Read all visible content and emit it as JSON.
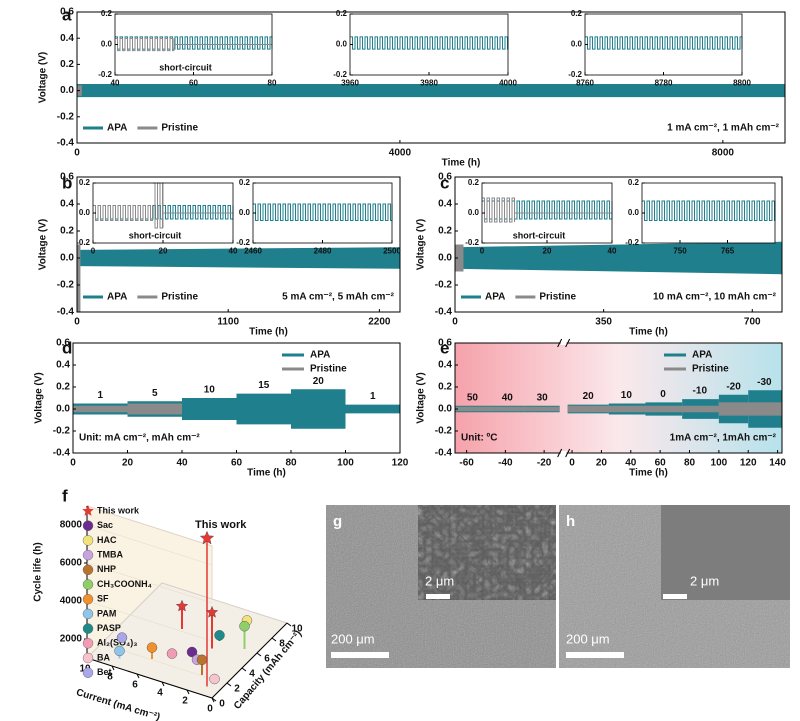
{
  "chart_data": [
    {
      "type": "band",
      "label": "a",
      "xlabel": "Time (h)",
      "ylabel": "Voltage (V)",
      "xlim": [
        0,
        8770
      ],
      "ylim": [
        -0.4,
        0.6
      ],
      "xticks": [
        0,
        4000,
        8000
      ],
      "yticks": [
        -0.4,
        -0.2,
        {
          "value": 0,
          "label": "0.0"
        },
        0.2,
        0.4,
        0.6
      ],
      "legend": "lower left",
      "notes": [
        {
          "text": "1 mA cm⁻², 1 mAh cm⁻²",
          "corner": "lower right"
        }
      ],
      "series": [
        {
          "name": "APA",
          "color": "#1f7f8c",
          "x": [
            0,
            8770
          ],
          "values": [
            0.05,
            0.05
          ],
          "lower": [
            -0.05,
            -0.05
          ]
        },
        {
          "name": "Pristine",
          "color": "#8a8a8a",
          "x": [
            0,
            60
          ],
          "values": [
            0.04,
            0.04
          ],
          "lower": [
            -0.04,
            -0.04
          ]
        }
      ],
      "insets": [
        {
          "xlim": [
            40,
            80
          ],
          "ylim": [
            -0.2,
            0.2
          ],
          "xticks": [
            40,
            60,
            80
          ],
          "yticks": [
            -0.2,
            {
              "value": 0,
              "label": "0.0"
            },
            0.2
          ],
          "note": "short-circuit",
          "series": [
            {
              "x": [
                40,
                80
              ],
              "values": [
                0.05,
                0.05
              ],
              "lower": [
                -0.03,
                -0.03
              ]
            },
            {
              "x": [
                40,
                55,
                55,
                80
              ],
              "values": [
                0.04,
                0.04,
                0,
                0
              ],
              "lower": [
                -0.04,
                -0.04,
                0,
                0
              ]
            }
          ]
        },
        {
          "xlim": [
            3960,
            4000
          ],
          "ylim": [
            -0.2,
            0.2
          ],
          "xticks": [
            3960,
            3980,
            4000
          ],
          "yticks": [
            -0.2,
            {
              "value": 0,
              "label": "0.0"
            },
            0.2
          ],
          "series": [
            {
              "x": [
                3960,
                4000
              ],
              "values": [
                0.05,
                0.05
              ],
              "lower": [
                -0.03,
                -0.03
              ]
            }
          ]
        },
        {
          "xlim": [
            8760,
            8800
          ],
          "ylim": [
            -0.2,
            0.2
          ],
          "xticks": [
            8760,
            8780,
            8800
          ],
          "yticks": [
            -0.2,
            {
              "value": 0,
              "label": "0.0"
            },
            0.2
          ],
          "series": [
            {
              "x": [
                8760,
                8800
              ],
              "values": [
                0.05,
                0.05
              ],
              "lower": [
                -0.03,
                -0.03
              ]
            }
          ]
        }
      ]
    },
    {
      "type": "band",
      "label": "b",
      "xlabel": "Time (h)",
      "ylabel": "Voltage (V)",
      "xlim": [
        0,
        2350
      ],
      "ylim": [
        -0.4,
        0.6
      ],
      "xticks": [
        0,
        1100,
        2200
      ],
      "yticks": [
        -0.4,
        -0.2,
        {
          "value": 0,
          "label": "0.0"
        },
        0.2,
        0.4,
        0.6
      ],
      "legend": "lower left",
      "notes": [
        {
          "text": "5 mA cm⁻², 5 mAh cm⁻²",
          "corner": "lower right"
        }
      ],
      "series": [
        {
          "name": "APA",
          "color": "#1f7f8c",
          "x": [
            0,
            2350
          ],
          "values": [
            0.06,
            0.08
          ],
          "lower": [
            -0.06,
            -0.08
          ]
        },
        {
          "name": "Pristine",
          "color": "#8a8a8a",
          "x": [
            0,
            25
          ],
          "values": [
            0.1,
            0.1
          ],
          "lower": [
            -0.4,
            -0.4
          ]
        }
      ],
      "insets": [
        {
          "xlim": [
            0,
            40
          ],
          "ylim": [
            -0.2,
            0.2
          ],
          "xticks": [
            0,
            20,
            40
          ],
          "yticks": [
            -0.2,
            {
              "value": 0,
              "label": "0.0"
            },
            0.2
          ],
          "note": "short-circuit",
          "series": [
            {
              "x": [
                0,
                40
              ],
              "values": [
                0.05,
                0.05
              ],
              "lower": [
                -0.04,
                -0.04
              ]
            },
            {
              "x": [
                0,
                17,
                17,
                20,
                20,
                40
              ],
              "values": [
                0.05,
                0.05,
                0.2,
                0.2,
                0,
                0
              ],
              "lower": [
                -0.05,
                -0.05,
                -0.1,
                -0.1,
                0,
                0
              ]
            }
          ]
        },
        {
          "xlim": [
            2460,
            2500
          ],
          "ylim": [
            -0.2,
            0.2
          ],
          "xticks": [
            2460,
            2480,
            2500
          ],
          "yticks": [
            -0.2,
            {
              "value": 0,
              "label": "0.0"
            },
            0.2
          ],
          "series": [
            {
              "x": [
                2460,
                2500
              ],
              "values": [
                0.06,
                0.06
              ],
              "lower": [
                -0.05,
                -0.05
              ]
            }
          ]
        }
      ]
    },
    {
      "type": "band",
      "label": "c",
      "xlabel": "Time (h)",
      "ylabel": "Voltage (V)",
      "xlim": [
        0,
        770
      ],
      "ylim": [
        -0.4,
        0.6
      ],
      "xticks": [
        0,
        350,
        700
      ],
      "yticks": [
        -0.4,
        -0.2,
        {
          "value": 0,
          "label": "0.0"
        },
        0.2,
        0.4,
        0.6
      ],
      "legend": "lower left",
      "notes": [
        {
          "text": "10 mA cm⁻², 10 mAh cm⁻²",
          "corner": "lower right"
        }
      ],
      "series": [
        {
          "name": "APA",
          "color": "#1f7f8c",
          "x": [
            0,
            770
          ],
          "values": [
            0.08,
            0.12
          ],
          "lower": [
            -0.08,
            -0.12
          ]
        },
        {
          "name": "Pristine",
          "color": "#8a8a8a",
          "x": [
            0,
            20
          ],
          "values": [
            0.1,
            0.1
          ],
          "lower": [
            -0.1,
            -0.1
          ]
        }
      ],
      "insets": [
        {
          "xlim": [
            0,
            40
          ],
          "ylim": [
            -0.2,
            0.2
          ],
          "xticks": [
            0,
            20,
            40
          ],
          "yticks": [
            -0.2,
            {
              "value": 0,
              "label": "0.0"
            },
            0.2
          ],
          "note": "short-circuit",
          "series": [
            {
              "x": [
                0,
                40
              ],
              "values": [
                0.08,
                0.08
              ],
              "lower": [
                -0.04,
                -0.04
              ]
            },
            {
              "x": [
                0,
                10,
                10,
                40
              ],
              "values": [
                0.1,
                0.1,
                0,
                0
              ],
              "lower": [
                -0.06,
                -0.06,
                0,
                0
              ]
            }
          ]
        },
        {
          "xlim": [
            738,
            780
          ],
          "ylim": [
            -0.2,
            0.2
          ],
          "xticks": [
            750,
            765
          ],
          "yticks": [
            -0.2,
            {
              "value": 0,
              "label": "0.0"
            },
            0.2
          ],
          "series": [
            {
              "x": [
                738,
                780
              ],
              "values": [
                0.08,
                0.08
              ],
              "lower": [
                -0.05,
                -0.05
              ]
            }
          ]
        }
      ]
    },
    {
      "type": "band",
      "label": "d",
      "xlabel": "Time (h)",
      "ylabel": "Voltage (V)",
      "xlim": [
        0,
        120
      ],
      "ylim": [
        -0.4,
        0.6
      ],
      "xticks": [
        0,
        20,
        40,
        60,
        80,
        100,
        120
      ],
      "yticks": [
        -0.4,
        -0.2,
        {
          "value": 0,
          "label": "0.0"
        },
        0.2,
        0.4,
        0.6
      ],
      "legend": "upper right",
      "notes": [
        {
          "text": "Unit: mA cm⁻², mAh cm⁻²",
          "corner": "lower left"
        }
      ],
      "series": [
        {
          "name": "APA",
          "color": "#1f7f8c",
          "x": [
            0,
            20,
            20,
            40,
            40,
            60,
            60,
            80,
            80,
            100,
            100,
            120
          ],
          "values": [
            0.05,
            0.05,
            0.07,
            0.07,
            0.1,
            0.1,
            0.14,
            0.14,
            0.18,
            0.18,
            0.04,
            0.04
          ],
          "lower": [
            -0.05,
            -0.05,
            -0.07,
            -0.07,
            -0.1,
            -0.1,
            -0.14,
            -0.14,
            -0.18,
            -0.18,
            -0.04,
            -0.04
          ]
        },
        {
          "name": "Pristine",
          "color": "#8a8a8a",
          "x": [
            0,
            20,
            20,
            40
          ],
          "values": [
            0.03,
            0.03,
            0.05,
            0.05
          ],
          "lower": [
            -0.03,
            -0.03,
            -0.05,
            -0.05
          ]
        }
      ],
      "step_labels": [
        {
          "label": "1",
          "x": 10
        },
        {
          "label": "5",
          "x": 30
        },
        {
          "label": "10",
          "x": 50
        },
        {
          "label": "15",
          "x": 70
        },
        {
          "label": "20",
          "x": 90
        },
        {
          "label": "1",
          "x": 110
        }
      ]
    },
    {
      "type": "band",
      "label": "e",
      "xlabel": "Time (h)",
      "ylabel": "Voltage (V)",
      "xlim": [
        -66,
        143
      ],
      "xbreak": [
        -12,
        -3
      ],
      "ylim": [
        -0.4,
        0.6
      ],
      "xticks": [
        -60,
        -40,
        -20,
        0,
        20,
        40,
        60,
        80,
        100,
        120,
        140
      ],
      "yticks": [
        -0.4,
        -0.2,
        {
          "value": 0,
          "label": "0.0"
        },
        0.2,
        0.4,
        0.6
      ],
      "background": [
        "#f6a2ab",
        "#fbe8eb",
        "#b7e2eb"
      ],
      "legend": "upper right",
      "notes": [
        {
          "text": "Unit: ºC",
          "corner": "lower left"
        },
        {
          "text": "1mA cm⁻², 1mAh cm⁻²",
          "corner": "lower right"
        }
      ],
      "series": [
        {
          "name": "APA",
          "color": "#1f7f8c",
          "x": [
            -66,
            -48,
            -48,
            -30,
            -30,
            -12,
            -3,
            25,
            25,
            50,
            50,
            75,
            75,
            100,
            100,
            120,
            120,
            143
          ],
          "values": [
            0.03,
            0.03,
            0.03,
            0.03,
            0.03,
            0.03,
            0.04,
            0.04,
            0.05,
            0.05,
            0.06,
            0.06,
            0.09,
            0.09,
            0.13,
            0.13,
            0.17,
            0.17
          ],
          "lower": [
            -0.03,
            -0.03,
            -0.03,
            -0.03,
            -0.03,
            -0.03,
            -0.04,
            -0.04,
            -0.05,
            -0.05,
            -0.06,
            -0.06,
            -0.09,
            -0.09,
            -0.13,
            -0.13,
            -0.17,
            -0.17
          ]
        },
        {
          "name": "Pristine",
          "color": "#8a8a8a",
          "x": [
            -66,
            -12,
            -3,
            100,
            100,
            143
          ],
          "values": [
            0.02,
            0.02,
            0.03,
            0.03,
            0.06,
            0.06
          ],
          "lower": [
            -0.02,
            -0.02,
            -0.03,
            -0.03,
            -0.06,
            -0.06
          ]
        }
      ],
      "step_labels": [
        {
          "label": "50",
          "x": -57
        },
        {
          "label": "40",
          "x": -39
        },
        {
          "label": "30",
          "x": -21
        },
        {
          "label": "20",
          "x": 11
        },
        {
          "label": "10",
          "x": 37
        },
        {
          "label": "0",
          "x": 62
        },
        {
          "label": "-10",
          "x": 87
        },
        {
          "label": "-20",
          "x": 110
        },
        {
          "label": "-30",
          "x": 131
        }
      ]
    },
    {
      "type": "scatter3d",
      "label": "f",
      "xlabel": "Current (mA cm⁻²)",
      "ylabel": "Capacity (mAh cm⁻²)",
      "zlabel": "Cycle life (h)",
      "xlim": [
        0,
        10
      ],
      "ylim": [
        0,
        10
      ],
      "zlim": [
        1000,
        9000
      ],
      "xticks": [
        0,
        2,
        4,
        6,
        8,
        10
      ],
      "yticks": [
        0,
        2,
        4,
        6,
        8,
        10
      ],
      "zticks": [
        2000,
        4000,
        6000,
        8000
      ],
      "annotation": "This work",
      "series": [
        {
          "name": "This work",
          "color": "#e53935",
          "marker": "star",
          "x": [
            1,
            3,
            6
          ],
          "y": [
            1,
            5,
            6
          ],
          "z": [
            8800,
            2900,
            2200
          ]
        },
        {
          "name": "Sac",
          "color": "#6a2c8e",
          "marker": "ball",
          "x": [
            4
          ],
          "y": [
            4
          ],
          "z": [
            1000
          ]
        },
        {
          "name": "HAC",
          "color": "#f2e27a",
          "marker": "ball",
          "x": [
            2
          ],
          "y": [
            8
          ],
          "z": [
            1500
          ]
        },
        {
          "name": "TMBA",
          "color": "#c9a3e0",
          "marker": "ball",
          "x": [
            3
          ],
          "y": [
            3
          ],
          "z": [
            1200
          ]
        },
        {
          "name": "NHP",
          "color": "#b8732e",
          "marker": "ball",
          "x": [
            2
          ],
          "y": [
            2
          ],
          "z": [
            1800
          ]
        },
        {
          "name": "CH₃COONH₄",
          "color": "#8fcf6a",
          "marker": "ball",
          "x": [
            1
          ],
          "y": [
            6
          ],
          "z": [
            2200
          ]
        },
        {
          "name": "SF",
          "color": "#f0902e",
          "marker": "ball",
          "x": [
            6
          ],
          "y": [
            2
          ],
          "z": [
            1600
          ]
        },
        {
          "name": "PAM",
          "color": "#8ec6ea",
          "marker": "ball",
          "x": [
            8
          ],
          "y": [
            1
          ],
          "z": [
            1400
          ]
        },
        {
          "name": "PASP",
          "color": "#1f8a8a",
          "marker": "ball",
          "x": [
            3
          ],
          "y": [
            6
          ],
          "z": [
            1300
          ]
        },
        {
          "name": "Al₂(SO₄)₃",
          "color": "#f29bb5",
          "marker": "ball",
          "x": [
            5
          ],
          "y": [
            3
          ],
          "z": [
            1100
          ]
        },
        {
          "name": "BA",
          "color": "#f6c3cf",
          "marker": "ball",
          "x": [
            1
          ],
          "y": [
            2
          ],
          "z": [
            1000
          ]
        },
        {
          "name": "Bet",
          "color": "#a9a6ea",
          "marker": "ball",
          "x": [
            9
          ],
          "y": [
            3
          ],
          "z": [
            1100
          ]
        }
      ]
    }
  ],
  "images": [
    {
      "label": "g",
      "scale_bar": "200 μm",
      "inset_scale_bar": "2 μm"
    },
    {
      "label": "h",
      "scale_bar": "200 μm",
      "inset_scale_bar": "2 μm"
    }
  ]
}
